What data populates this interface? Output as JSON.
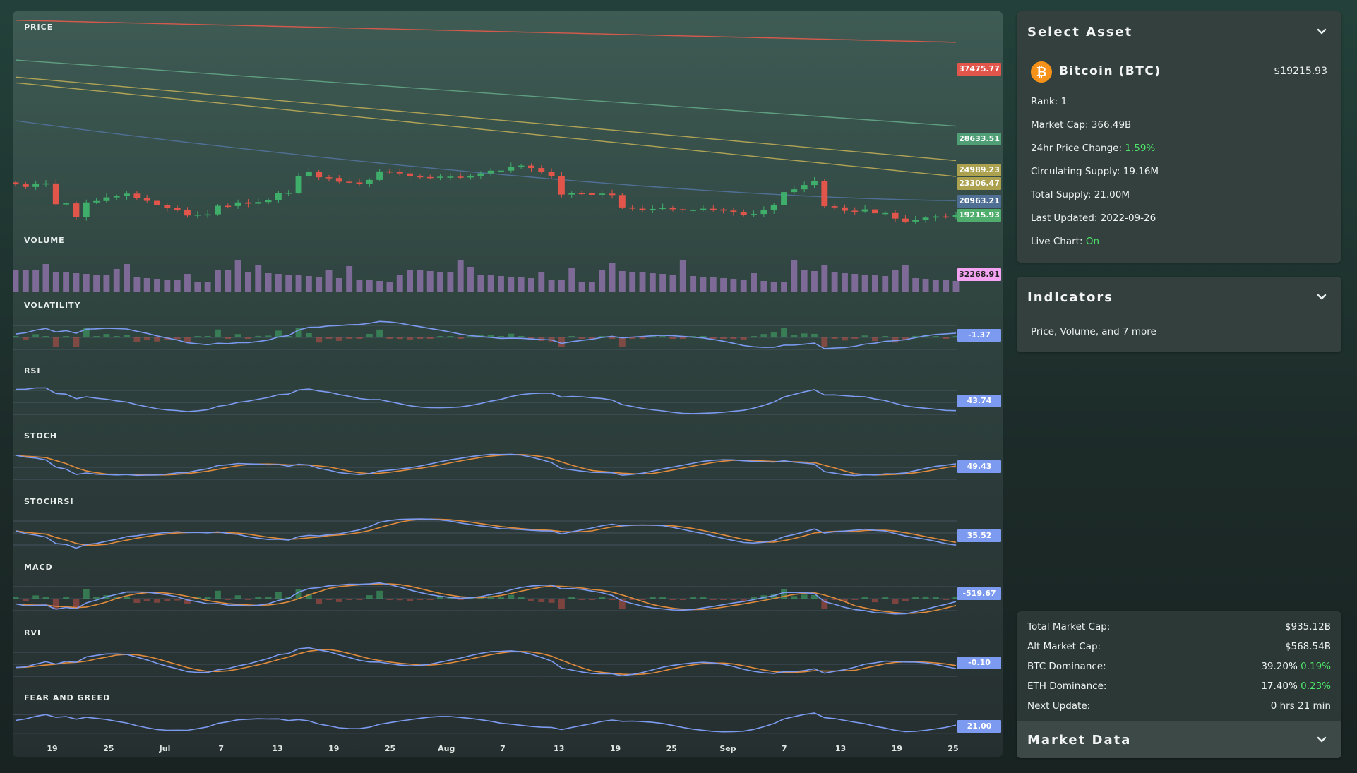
{
  "chart": {
    "panes": [
      {
        "key": "price",
        "label": "PRICE"
      },
      {
        "key": "volume",
        "label": "VOLUME"
      },
      {
        "key": "volatility",
        "label": "VOLATILITY"
      },
      {
        "key": "rsi",
        "label": "RSI"
      },
      {
        "key": "stoch",
        "label": "STOCH"
      },
      {
        "key": "stochrsi",
        "label": "STOCHRSI"
      },
      {
        "key": "macd",
        "label": "MACD"
      },
      {
        "key": "rvi",
        "label": "RVI"
      },
      {
        "key": "fng",
        "label": "FEAR AND GREED"
      }
    ],
    "price_badges": [
      {
        "value": "37475.77",
        "color": "#e2554b",
        "text_color": "#ffffff"
      },
      {
        "value": "28633.51",
        "color": "#4f9e76",
        "text_color": "#ffffff"
      },
      {
        "value": "24989.23",
        "color": "#aca14f",
        "text_color": "#ffffff"
      },
      {
        "value": "23306.47",
        "color": "#aca14f",
        "text_color": "#ffffff"
      },
      {
        "value": "20963.21",
        "color": "#4f6f95",
        "text_color": "#ffffff"
      },
      {
        "value": "19215.93",
        "color": "#4fae6d",
        "text_color": "#ffffff"
      }
    ],
    "volume_badge": {
      "value": "32268.91",
      "color": "#f3a3f2",
      "text_color": "#222222"
    },
    "volatility_badge": {
      "value": "-1.37",
      "color": "#7c9af0",
      "text_color": "#ffffff"
    },
    "rsi_badge": {
      "value": "43.74",
      "color": "#7c9af0",
      "text_color": "#ffffff"
    },
    "stoch_badge": {
      "value": "49.43",
      "color": "#7c9af0",
      "text_color": "#ffffff"
    },
    "stochrsi_badge": {
      "value": "35.52",
      "color": "#7c9af0",
      "text_color": "#ffffff"
    },
    "macd_badge": {
      "value": "-519.67",
      "color": "#7c9af0",
      "text_color": "#ffffff"
    },
    "rvi_badge": {
      "value": "-0.10",
      "color": "#7c9af0",
      "text_color": "#ffffff"
    },
    "fng_badge": {
      "value": "21.00",
      "color": "#7c9af0",
      "text_color": "#ffffff"
    },
    "x_ticks": [
      "19",
      "25",
      "Jul",
      "7",
      "13",
      "19",
      "25",
      "Aug",
      "7",
      "13",
      "19",
      "25",
      "Sep",
      "7",
      "13",
      "19",
      "25"
    ],
    "colors": {
      "up": "#3fae6a",
      "down": "#e2554b",
      "line_primary": "#7c9af0",
      "line_signal": "#e08a3c",
      "volume": "#7d6a97",
      "ma_red": "#d65a4c",
      "ma_green": "#5f9e80",
      "ma_yellow": "#b0a356",
      "ma_blue": "#4f6f95"
    }
  },
  "chart_data": {
    "type": "line",
    "x_range": [
      "Jun 13",
      "Sep 26"
    ],
    "series": [
      {
        "name": "BTC Close",
        "values": [
          22487,
          22206,
          22573,
          22580,
          20385,
          20471,
          19018,
          20573,
          20719,
          21108,
          21233,
          21502,
          21020,
          20738,
          20279,
          19991,
          19785,
          19197,
          19286,
          19315,
          20215,
          20191,
          20573,
          20443,
          20612,
          20817,
          21586,
          21592,
          23323,
          23805,
          23226,
          23151,
          22760,
          22684,
          22555,
          22950,
          23843,
          23810,
          23634,
          23337,
          23249,
          23227,
          23285,
          23292,
          23209,
          23389,
          23638,
          23922,
          23930,
          24355,
          24454,
          24202,
          23804,
          23337,
          21401,
          21555,
          21527,
          21377,
          21500,
          21350,
          20042,
          19917,
          19800,
          19890,
          20022,
          19856,
          19765,
          19785,
          19913,
          19830,
          19710,
          19540,
          19255,
          19355,
          19740,
          20295,
          21664,
          21955,
          22410,
          22820,
          20175,
          20048,
          19700,
          19620,
          19840,
          19430,
          19450,
          18870,
          18550,
          18720,
          18970,
          19095,
          19040,
          19215
        ]
      }
    ],
    "indicator_last_values": {
      "volume": 32268.91,
      "volatility": -1.37,
      "rsi": 43.74,
      "stoch": 49.43,
      "stochrsi": 35.52,
      "macd": -519.67,
      "rvi": -0.1,
      "fear_and_greed": 21.0
    },
    "moving_averages_last": [
      37475.77,
      28633.51,
      24989.23,
      23306.47,
      20963.21
    ]
  },
  "asset": {
    "section_title": "Select Asset",
    "name": "Bitcoin (BTC)",
    "price": "$19215.93",
    "rank_label": "Rank:",
    "rank_value": "1",
    "market_cap_label": "Market Cap:",
    "market_cap_value": "366.49B",
    "change_label": "24hr Price Change:",
    "change_value": "1.59%",
    "circ_label": "Circulating Supply:",
    "circ_value": "19.16M",
    "total_label": "Total Supply:",
    "total_value": "21.00M",
    "updated_label": "Last Updated:",
    "updated_value": "2022-09-26",
    "live_label": "Live Chart:",
    "live_value": "On"
  },
  "indicators": {
    "section_title": "Indicators",
    "summary": "Price, Volume, and 7 more"
  },
  "market": {
    "rows": [
      {
        "label": "Total Market Cap:",
        "value": "$935.12B",
        "change": ""
      },
      {
        "label": "Alt Market Cap:",
        "value": "$568.54B",
        "change": ""
      },
      {
        "label": "BTC Dominance:",
        "value": "39.20%",
        "change": "0.19%"
      },
      {
        "label": "ETH Dominance:",
        "value": "17.40%",
        "change": "0.23%"
      },
      {
        "label": "Next Update:",
        "value": "0 hrs 21 min",
        "change": ""
      }
    ],
    "section_title": "Market Data"
  }
}
